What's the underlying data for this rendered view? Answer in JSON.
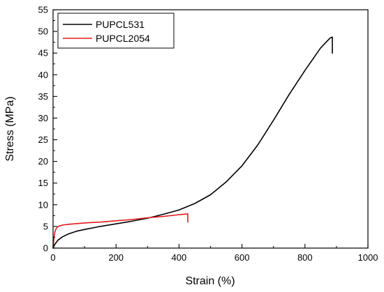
{
  "chart_data": {
    "type": "line",
    "xlabel": "Strain (%)",
    "ylabel": "Stress (MPa)",
    "xlim": [
      0,
      1000
    ],
    "ylim": [
      0,
      55
    ],
    "xticks": [
      0,
      200,
      400,
      600,
      800,
      1000
    ],
    "yticks": [
      0,
      5,
      10,
      15,
      20,
      25,
      30,
      35,
      40,
      45,
      50,
      55
    ],
    "grid": false,
    "legend_position": "top-left",
    "series": [
      {
        "name": "PUPCL531",
        "color": "#000000",
        "x": [
          0,
          5,
          15,
          30,
          50,
          75,
          100,
          150,
          200,
          250,
          300,
          350,
          400,
          450,
          500,
          550,
          600,
          650,
          700,
          750,
          800,
          850,
          880,
          887,
          887
        ],
        "y": [
          0,
          0.8,
          1.8,
          2.6,
          3.3,
          3.9,
          4.3,
          5.0,
          5.6,
          6.2,
          6.9,
          7.8,
          8.8,
          10.3,
          12.3,
          15.3,
          19.0,
          23.8,
          29.5,
          35.5,
          41.0,
          46.2,
          48.5,
          48.7,
          45.0
        ]
      },
      {
        "name": "PUPCL2054",
        "color": "#e31a1c",
        "x": [
          0,
          3,
          6,
          10,
          15,
          20,
          30,
          50,
          100,
          150,
          200,
          250,
          300,
          350,
          400,
          428,
          428
        ],
        "y": [
          0,
          2.5,
          3.8,
          4.5,
          4.9,
          5.1,
          5.3,
          5.5,
          5.8,
          6.0,
          6.3,
          6.6,
          7.0,
          7.3,
          7.7,
          7.9,
          6.0
        ]
      }
    ]
  }
}
